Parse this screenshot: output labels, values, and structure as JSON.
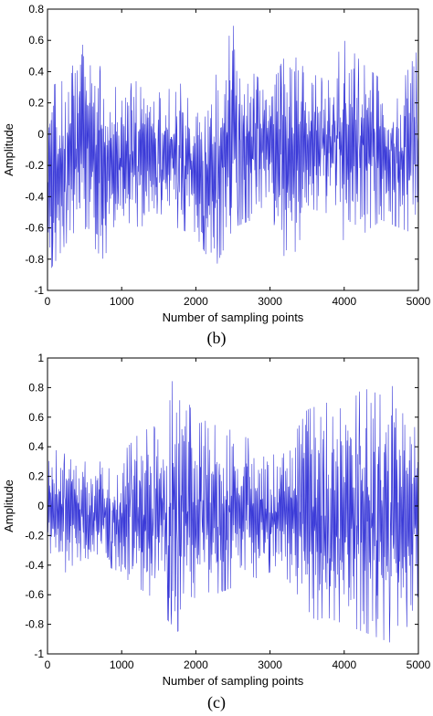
{
  "chart_data": [
    {
      "type": "line",
      "panel_label": "(b)",
      "xlabel": "Number of sampling points",
      "ylabel": "Amplitude",
      "xlim": [
        0,
        5000
      ],
      "ylim": [
        -1,
        0.8
      ],
      "xticks": [
        0,
        1000,
        2000,
        3000,
        4000,
        5000
      ],
      "yticks": [
        -1,
        -0.8,
        -0.6,
        -0.4,
        -0.2,
        0,
        0.2,
        0.4,
        0.6,
        0.8
      ],
      "ytick_labels": [
        "-1",
        "-0.8",
        "-0.6",
        "-0.4",
        "-0.2",
        "0",
        "0.2",
        "0.4",
        "0.6",
        "0.8"
      ],
      "line_color": "#3a3ad8",
      "grid": false,
      "envelope": {
        "x": [
          0,
          250,
          500,
          750,
          1000,
          1250,
          1500,
          1750,
          2000,
          2250,
          2500,
          2750,
          3000,
          3250,
          3500,
          3750,
          4000,
          4250,
          4500,
          4750,
          5000
        ],
        "upper": [
          0.3,
          0.35,
          0.6,
          0.4,
          0.3,
          0.35,
          0.3,
          0.35,
          0.2,
          0.35,
          0.7,
          0.4,
          0.3,
          0.55,
          0.4,
          0.35,
          0.6,
          0.45,
          0.35,
          0.3,
          0.55
        ],
        "lower": [
          -0.9,
          -0.7,
          -0.65,
          -0.8,
          -0.55,
          -0.6,
          -0.5,
          -0.6,
          -0.65,
          -0.87,
          -0.6,
          -0.55,
          -0.5,
          -0.87,
          -0.55,
          -0.5,
          -0.7,
          -0.65,
          -0.55,
          -0.6,
          -0.65
        ]
      }
    },
    {
      "type": "line",
      "panel_label": "(c)",
      "xlabel": "Number of sampling points",
      "ylabel": "Amplitude",
      "xlim": [
        0,
        5000
      ],
      "ylim": [
        -1,
        1
      ],
      "xticks": [
        0,
        1000,
        2000,
        3000,
        4000,
        5000
      ],
      "yticks": [
        -1,
        -0.8,
        -0.6,
        -0.4,
        -0.2,
        0,
        0.2,
        0.4,
        0.6,
        0.8,
        1
      ],
      "ytick_labels": [
        "-1",
        "-0.8",
        "-0.6",
        "-0.4",
        "-0.2",
        "0",
        "0.2",
        "0.4",
        "0.6",
        "0.8",
        "1"
      ],
      "line_color": "#3a3ad8",
      "grid": false,
      "envelope": {
        "x": [
          0,
          250,
          500,
          750,
          1000,
          1250,
          1500,
          1750,
          2000,
          2250,
          2500,
          2750,
          3000,
          3250,
          3500,
          3750,
          4000,
          4250,
          4500,
          4750,
          5000
        ],
        "upper": [
          0.4,
          0.35,
          0.3,
          0.3,
          0.35,
          0.5,
          0.55,
          0.95,
          0.55,
          0.6,
          0.5,
          0.45,
          0.35,
          0.4,
          0.65,
          0.7,
          0.65,
          0.8,
          0.75,
          0.85,
          0.6
        ],
        "lower": [
          -0.4,
          -0.45,
          -0.35,
          -0.4,
          -0.45,
          -0.6,
          -0.7,
          -0.85,
          -0.75,
          -0.6,
          -0.55,
          -0.5,
          -0.45,
          -0.5,
          -0.8,
          -0.75,
          -0.8,
          -0.85,
          -0.9,
          -0.95,
          -0.6
        ]
      }
    }
  ]
}
